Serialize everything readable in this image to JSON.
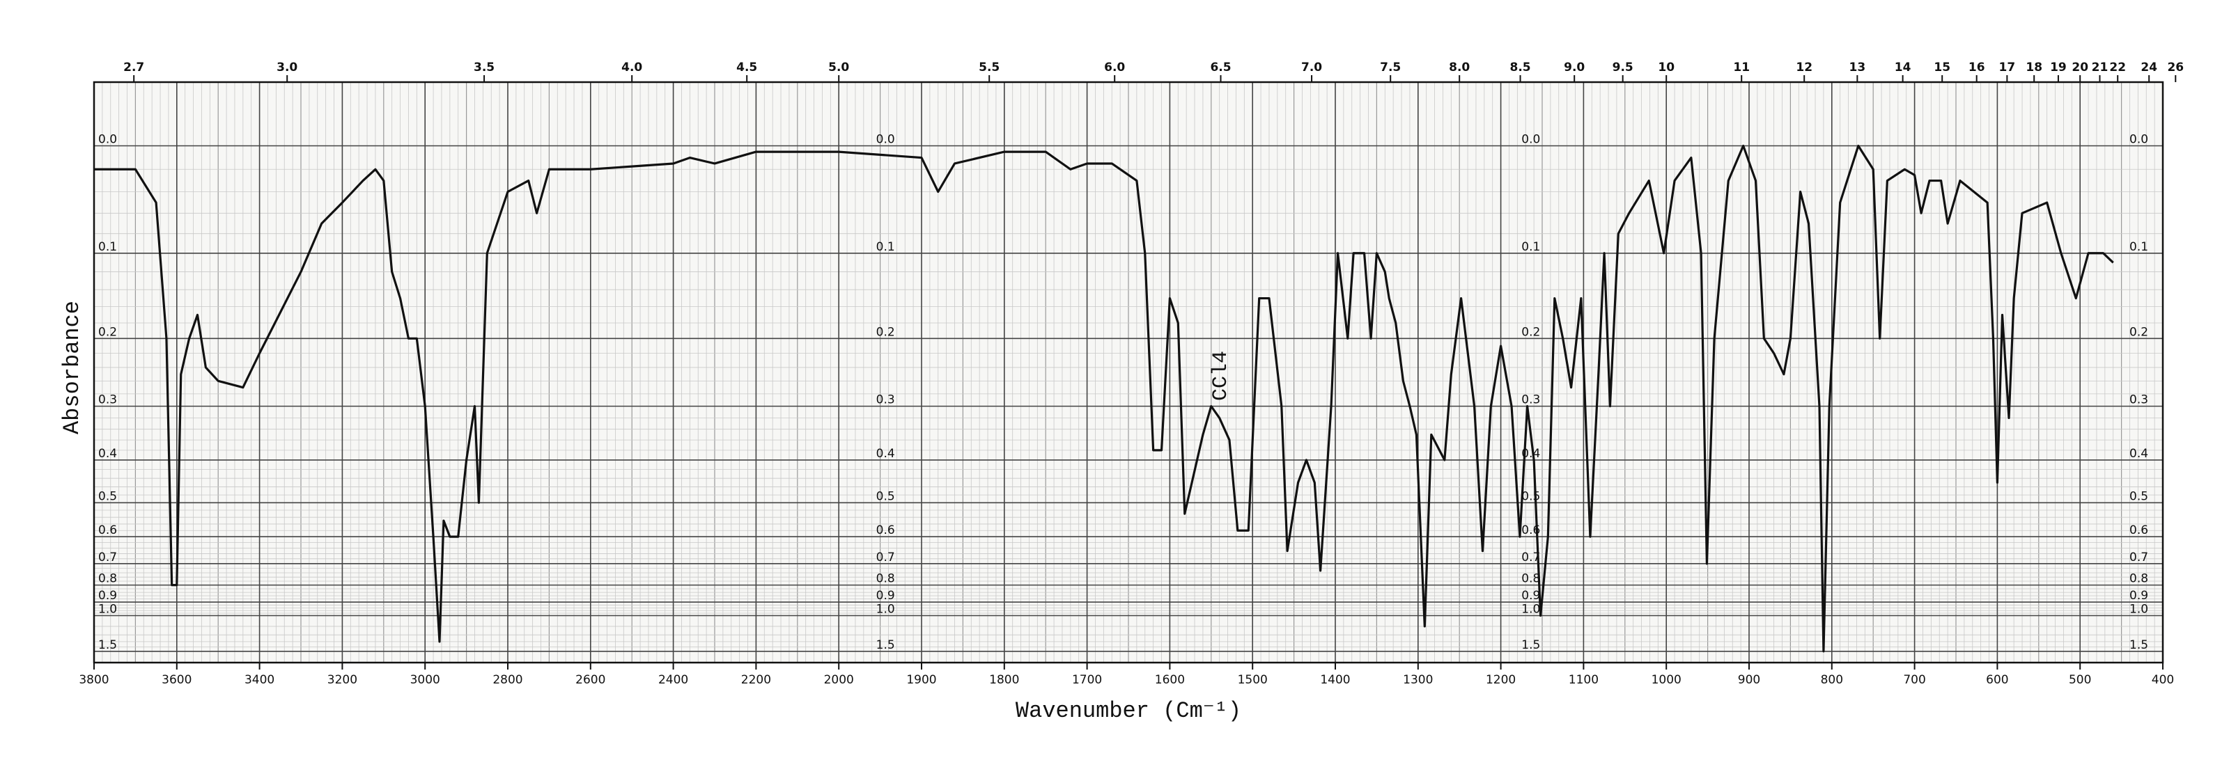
{
  "chart_data": {
    "type": "line",
    "x_label": "Wavenumber (Cm⁻¹)",
    "y_label": "Absorbance",
    "annotation": "CCl4",
    "y_scale": "absorbance",
    "x2_scale": "wavelength_um",
    "grid": true,
    "x": [
      3800,
      3700,
      3650,
      3625,
      3612,
      3600,
      3590,
      3570,
      3550,
      3530,
      3500,
      3440,
      3400,
      3300,
      3250,
      3200,
      3150,
      3120,
      3100,
      3080,
      3060,
      3040,
      3020,
      3000,
      2980,
      2965,
      2955,
      2940,
      2920,
      2900,
      2880,
      2870,
      2850,
      2800,
      2750,
      2730,
      2700,
      2600,
      2400,
      2360,
      2300,
      2200,
      2000,
      1900,
      1880,
      1860,
      1800,
      1750,
      1720,
      1700,
      1670,
      1640,
      1630,
      1620,
      1610,
      1600,
      1590,
      1582,
      1560,
      1550,
      1540,
      1528,
      1518,
      1505,
      1492,
      1480,
      1465,
      1458,
      1445,
      1435,
      1425,
      1418,
      1405,
      1397,
      1385,
      1378,
      1365,
      1357,
      1350,
      1340,
      1335,
      1327,
      1318,
      1310,
      1302,
      1292,
      1284,
      1268,
      1260,
      1248,
      1232,
      1222,
      1212,
      1200,
      1187,
      1177,
      1168,
      1160,
      1152,
      1143,
      1135,
      1125,
      1115,
      1103,
      1092,
      1082,
      1075,
      1068,
      1058,
      1045,
      1021,
      1003,
      990,
      970,
      958,
      951,
      942,
      925,
      907,
      892,
      882,
      870,
      858,
      850,
      838,
      828,
      815,
      810,
      803,
      790,
      768,
      750,
      742,
      733,
      712,
      700,
      692,
      682,
      668,
      660,
      645,
      612,
      605,
      600,
      594,
      586,
      580,
      570,
      540,
      523,
      505,
      490,
      472,
      460
    ],
    "series": [
      {
        "color": "#111111",
        "values": [
          0.02,
          0.02,
          0.05,
          0.2,
          0.8,
          0.8,
          0.25,
          0.2,
          0.17,
          0.24,
          0.26,
          0.27,
          0.22,
          0.12,
          0.07,
          0.05,
          0.03,
          0.02,
          0.03,
          0.12,
          0.15,
          0.2,
          0.2,
          0.3,
          0.6,
          1.3,
          0.55,
          0.6,
          0.6,
          0.4,
          0.3,
          0.5,
          0.1,
          0.04,
          0.03,
          0.06,
          0.02,
          0.02,
          0.015,
          0.01,
          0.015,
          0.005,
          0.005,
          0.01,
          0.04,
          0.015,
          0.005,
          0.005,
          0.02,
          0.015,
          0.015,
          0.03,
          0.1,
          0.38,
          0.38,
          0.15,
          0.18,
          0.53,
          0.35,
          0.3,
          0.32,
          0.36,
          0.58,
          0.58,
          0.15,
          0.15,
          0.3,
          0.65,
          0.45,
          0.4,
          0.45,
          0.73,
          0.3,
          0.1,
          0.2,
          0.1,
          0.1,
          0.2,
          0.1,
          0.12,
          0.15,
          0.18,
          0.26,
          0.3,
          0.35,
          1.1,
          0.35,
          0.4,
          0.25,
          0.15,
          0.3,
          0.65,
          0.3,
          0.21,
          0.3,
          0.6,
          0.3,
          0.4,
          1.0,
          0.6,
          0.15,
          0.2,
          0.27,
          0.15,
          0.6,
          0.25,
          0.1,
          0.3,
          0.08,
          0.06,
          0.03,
          0.1,
          0.03,
          0.01,
          0.1,
          0.7,
          0.2,
          0.03,
          0,
          0.03,
          0.2,
          0.22,
          0.25,
          0.2,
          0.04,
          0.07,
          0.3,
          1.5,
          0.3,
          0.05,
          0,
          0.02,
          0.2,
          0.03,
          0.02,
          0.025,
          0.06,
          0.03,
          0.03,
          0.07,
          0.03,
          0.05,
          0.2,
          0.45,
          0.17,
          0.32,
          0.15,
          0.06,
          0.05,
          0.1,
          0.15,
          0.1,
          0.1,
          0.11
        ]
      }
    ],
    "xlim": [
      3800,
      400
    ],
    "xticks": [
      3800,
      3600,
      3400,
      3200,
      3000,
      2800,
      2600,
      2400,
      2200,
      2000,
      1900,
      1800,
      1700,
      1600,
      1500,
      1400,
      1300,
      1200,
      1100,
      1000,
      900,
      800,
      700,
      600,
      500,
      400
    ],
    "ylim": [
      -0.05,
      2
    ],
    "yticks": [
      {
        "value": 0,
        "label": "0.0"
      },
      0.1,
      0.2,
      0.3,
      0.4,
      0.5,
      0.6,
      0.7,
      0.8,
      0.9,
      {
        "value": 1,
        "label": "1.0"
      },
      1.5
    ],
    "x2ticks": [
      2.7,
      {
        "value": 3,
        "label": "3.0"
      },
      3.5,
      {
        "value": 4,
        "label": "4.0"
      },
      4.5,
      {
        "value": 5,
        "label": "5.0"
      },
      5.5,
      {
        "value": 6,
        "label": "6.0"
      },
      6.5,
      {
        "value": 7,
        "label": "7.0"
      },
      7.5,
      {
        "value": 8,
        "label": "8.0"
      },
      8.5,
      {
        "value": 9,
        "label": "9.0"
      },
      9.5,
      10,
      11,
      12,
      13,
      14,
      15,
      16,
      17,
      18,
      19,
      20,
      21,
      22,
      24,
      26
    ]
  }
}
